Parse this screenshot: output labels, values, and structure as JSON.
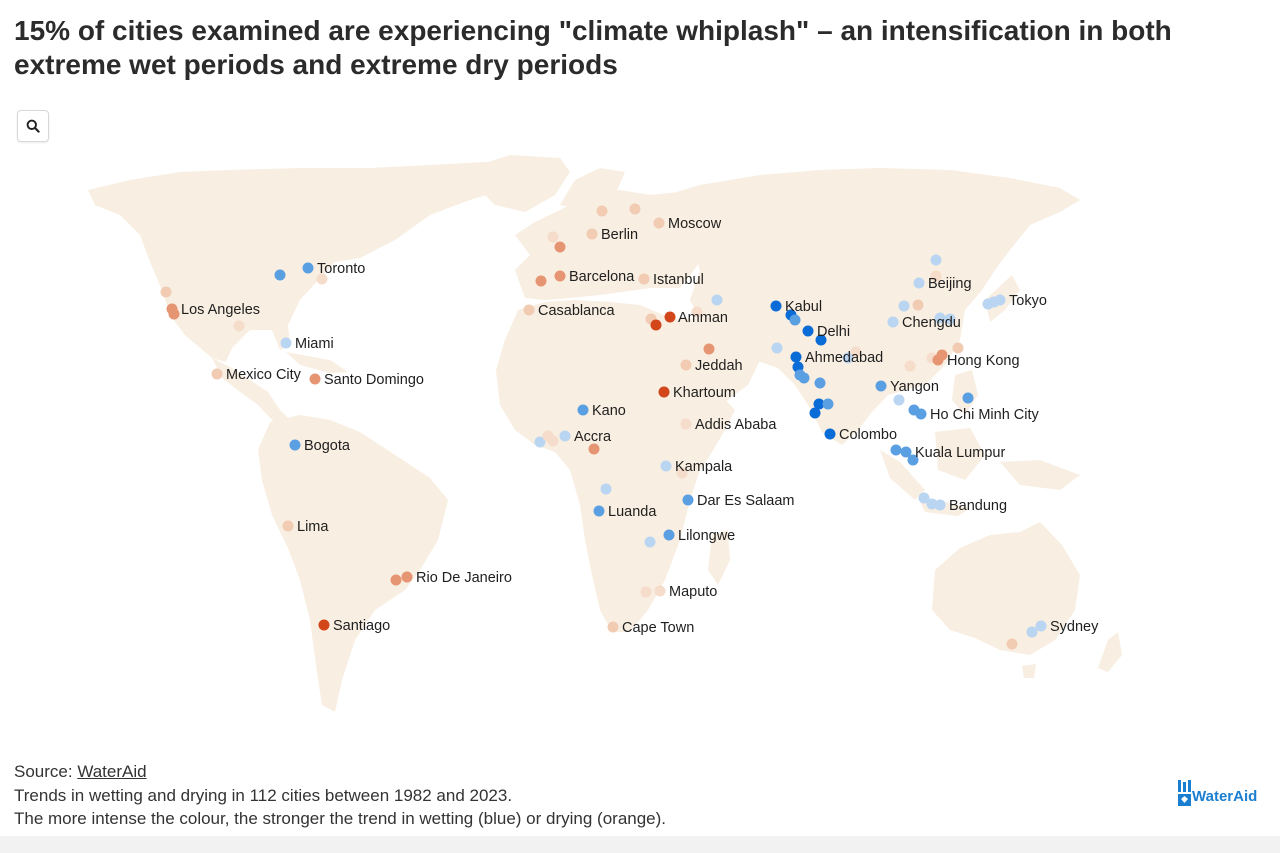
{
  "title": "15% of cities examined are experiencing \"climate whiplash\" – an intensification in both extreme wet periods and extreme dry periods",
  "zoom_button": {
    "icon": "search-icon"
  },
  "colors": {
    "land": "#f8eee1",
    "strong_wetting": "#0a6cd6",
    "wetting": "#5b9fe3",
    "mild_wetting": "#b9d5f1",
    "mild_drying": "#f2cbb3",
    "drying": "#e69572",
    "strong_drying": "#d2461a"
  },
  "cities": [
    {
      "name": "Toronto",
      "trend": "wetting-mid"
    },
    {
      "name": "Los Angeles",
      "trend": "drying-mid"
    },
    {
      "name": "Miami",
      "trend": "wetting-light"
    },
    {
      "name": "Mexico City",
      "trend": "drying-light"
    },
    {
      "name": "Santo Domingo",
      "trend": "drying-mid"
    },
    {
      "name": "Bogota",
      "trend": "wetting-mid"
    },
    {
      "name": "Lima",
      "trend": "drying-light"
    },
    {
      "name": "Rio De Janeiro",
      "trend": "drying-mid"
    },
    {
      "name": "Santiago",
      "trend": "drying-strong"
    },
    {
      "name": "Berlin",
      "trend": "drying-light"
    },
    {
      "name": "Moscow",
      "trend": "drying-light"
    },
    {
      "name": "Barcelona",
      "trend": "drying-mid"
    },
    {
      "name": "Istanbul",
      "trend": "drying-light"
    },
    {
      "name": "Casablanca",
      "trend": "drying-light"
    },
    {
      "name": "Amman",
      "trend": "drying-strong"
    },
    {
      "name": "Jeddah",
      "trend": "drying-light"
    },
    {
      "name": "Khartoum",
      "trend": "drying-strong"
    },
    {
      "name": "Kano",
      "trend": "wetting-mid"
    },
    {
      "name": "Addis Ababa",
      "trend": "drying-faint"
    },
    {
      "name": "Accra",
      "trend": "wetting-light"
    },
    {
      "name": "Kampala",
      "trend": "wetting-light"
    },
    {
      "name": "Dar Es Salaam",
      "trend": "wetting-mid"
    },
    {
      "name": "Luanda",
      "trend": "wetting-mid"
    },
    {
      "name": "Lilongwe",
      "trend": "wetting-mid"
    },
    {
      "name": "Maputo",
      "trend": "drying-faint"
    },
    {
      "name": "Cape Town",
      "trend": "drying-light"
    },
    {
      "name": "Kabul",
      "trend": "wetting-strong"
    },
    {
      "name": "Delhi",
      "trend": "wetting-strong"
    },
    {
      "name": "Ahmedabad",
      "trend": "wetting-strong"
    },
    {
      "name": "Colombo",
      "trend": "wetting-strong"
    },
    {
      "name": "Yangon",
      "trend": "wetting-mid"
    },
    {
      "name": "Ho Chi Minh City",
      "trend": "wetting-mid"
    },
    {
      "name": "Kuala Lumpur",
      "trend": "wetting-mid"
    },
    {
      "name": "Bandung",
      "trend": "wetting-light"
    },
    {
      "name": "Beijing",
      "trend": "wetting-light"
    },
    {
      "name": "Chengdu",
      "trend": "wetting-light"
    },
    {
      "name": "Hong Kong",
      "trend": "drying-mid"
    },
    {
      "name": "Tokyo",
      "trend": "wetting-light"
    },
    {
      "name": "Sydney",
      "trend": "wetting-light"
    }
  ],
  "footer": {
    "source_prefix": "Source: ",
    "source_link": "WaterAid",
    "note_1": "Trends in wetting and drying in 112 cities between 1982 and 2023.",
    "note_2": "The more intense the colour, the stronger the trend in wetting (blue) or drying (orange)."
  },
  "brand": {
    "name": "WaterAid",
    "icon": "wateraid-logo-icon"
  }
}
